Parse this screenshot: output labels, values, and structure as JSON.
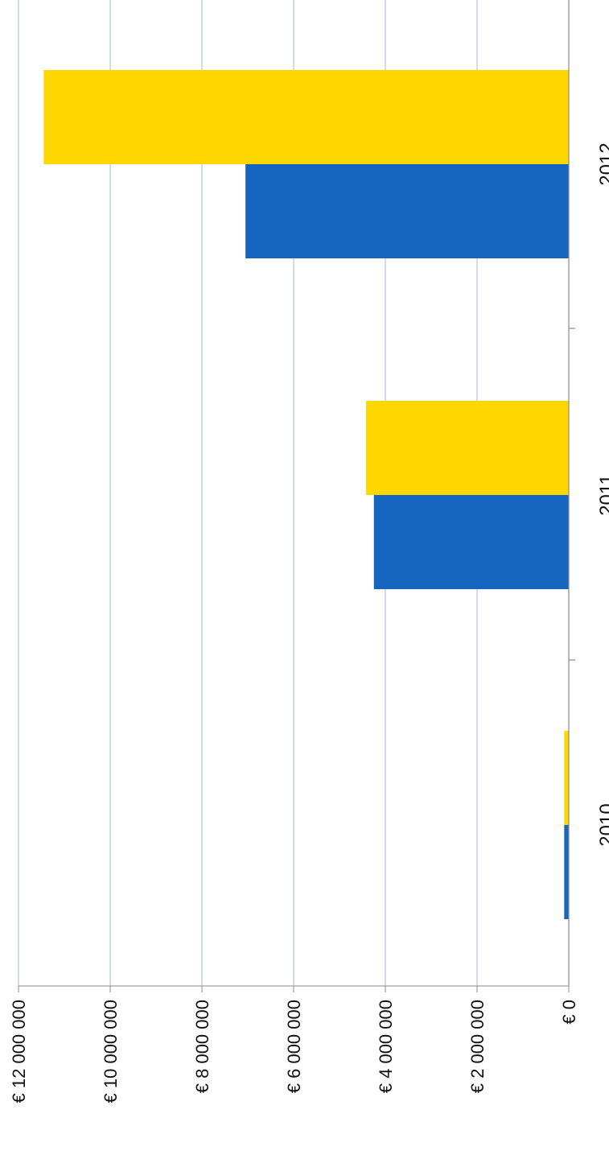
{
  "chart_data": {
    "type": "bar",
    "orientation": "rotated",
    "categories": [
      "2010",
      "2011",
      "2012"
    ],
    "series": [
      {
        "color": "#1565C0",
        "values": [
          100000,
          4250000,
          7050000
        ]
      },
      {
        "color": "#FFD700",
        "values": [
          100000,
          4420000,
          11450000
        ]
      }
    ],
    "value_axis": {
      "min": 0,
      "max": 12000000,
      "step": 2000000,
      "tick_labels": [
        "€ 0",
        "€ 2 000 000",
        "€ 4 000 000",
        "€ 6 000 000",
        "€ 8 000 000",
        "€ 10 000 000",
        "€ 12 000 000"
      ]
    },
    "grid": true,
    "legend": "none",
    "title": "",
    "xlabel": "",
    "ylabel": ""
  }
}
